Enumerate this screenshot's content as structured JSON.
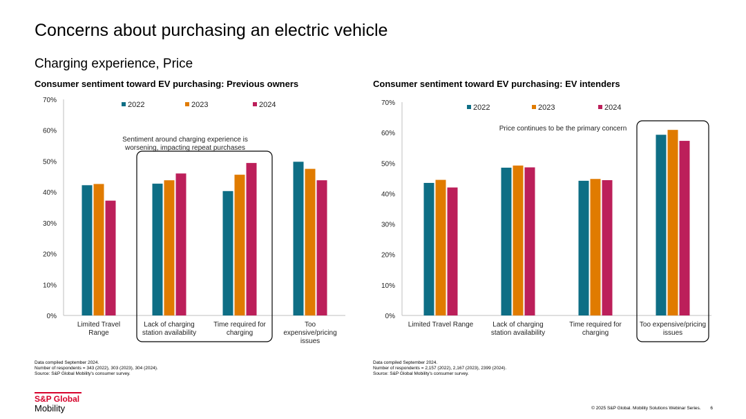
{
  "page": {
    "title": "Concerns about purchasing an electric vehicle",
    "subtitle": "Charging experience, Price"
  },
  "colors": {
    "2022": "#0e6e85",
    "2023": "#e07b00",
    "2024": "#bc1f5a",
    "axis": "#bfbfbf",
    "logo": "#d6002a"
  },
  "chart_data": [
    {
      "type": "bar",
      "title": "Consumer sentiment toward EV purchasing: Previous owners",
      "categories": [
        "Limited Travel Range",
        "Lack of charging station availability",
        "Time required for charging",
        "Too expensive/pricing issues"
      ],
      "category_lines": [
        [
          "Limited Travel",
          "Range"
        ],
        [
          "Lack of charging",
          "station availability"
        ],
        [
          "Time required for",
          "charging"
        ],
        [
          "Too",
          "expensive/pricing",
          "issues"
        ]
      ],
      "series": [
        {
          "name": "2022",
          "color": "#0e6e85",
          "values": [
            42.2,
            42.7,
            40.3,
            49.8
          ]
        },
        {
          "name": "2023",
          "color": "#e07b00",
          "values": [
            42.6,
            43.8,
            45.6,
            47.5
          ]
        },
        {
          "name": "2024",
          "color": "#bc1f5a",
          "values": [
            37.2,
            46.0,
            49.4,
            43.8
          ]
        }
      ],
      "ylim": [
        0,
        70
      ],
      "yticks": [
        "0%",
        "10%",
        "20%",
        "30%",
        "40%",
        "50%",
        "60%",
        "70%"
      ],
      "annotation": {
        "lines": [
          "Sentiment around charging experience is",
          "worsening, impacting repeat purchases"
        ],
        "highlight": [
          1,
          2
        ]
      },
      "legend": "top",
      "notes": [
        "Data compiled September 2024.",
        "Number of respondents = 343 (2022), 303 (2023), 304 (2024).",
        "Source: S&P Global Mobility's consumer survey."
      ]
    },
    {
      "type": "bar",
      "title": "Consumer sentiment toward EV purchasing: EV intenders",
      "categories": [
        "Limited Travel Range",
        "Lack of charging station availability",
        "Time required for charging",
        "Too expensive/pricing issues"
      ],
      "category_lines": [
        [
          "Limited Travel Range"
        ],
        [
          "Lack of charging",
          "station availability"
        ],
        [
          "Time required for",
          "charging"
        ],
        [
          "Too expensive/pricing",
          "issues"
        ]
      ],
      "series": [
        {
          "name": "2022",
          "color": "#0e6e85",
          "values": [
            43.5,
            48.5,
            44.2,
            59.3
          ]
        },
        {
          "name": "2023",
          "color": "#e07b00",
          "values": [
            44.5,
            49.2,
            44.8,
            60.9
          ]
        },
        {
          "name": "2024",
          "color": "#bc1f5a",
          "values": [
            42.0,
            48.6,
            44.4,
            57.3
          ]
        }
      ],
      "ylim": [
        0,
        70
      ],
      "yticks": [
        "0%",
        "10%",
        "20%",
        "30%",
        "40%",
        "50%",
        "60%",
        "70%"
      ],
      "annotation": {
        "lines": [
          "Price continues to be the primary concern"
        ],
        "highlight": [
          3
        ]
      },
      "legend": "top",
      "notes": [
        "Data compiled September 2024.",
        "Number of respondents = 2,157 (2022), 2,167 (2023), 2399 (2024).",
        "Source: S&P Global Mobility's consumer survey."
      ]
    }
  ],
  "logo": {
    "top": "S&P Global",
    "bottom": "Mobility"
  },
  "footer": {
    "copyright": "© 2025 S&P Global. Mobility Solutions Webinar Series.",
    "page_number": "6"
  }
}
